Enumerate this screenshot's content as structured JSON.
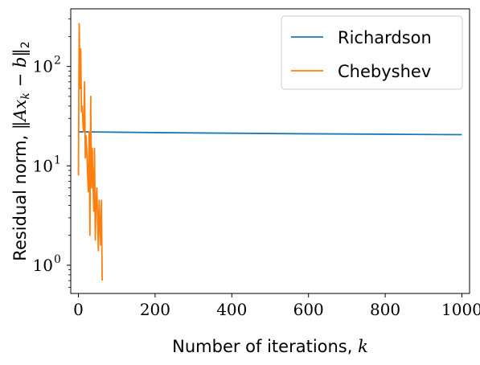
{
  "chart_data": {
    "type": "line",
    "xlabel": "Number of iterations, k",
    "ylabel": "Residual norm, ‖Ax_k − b‖_2",
    "xlim": [
      -20,
      1020
    ],
    "ylim": [
      0.52,
      380
    ],
    "yscale": "log",
    "xticks": [
      0,
      200,
      400,
      600,
      800,
      1000
    ],
    "xtick_labels": [
      "0",
      "200",
      "400",
      "600",
      "800",
      "1000"
    ],
    "yticks": [
      1,
      10,
      100
    ],
    "ytick_labels": [
      "10",
      "10",
      "10"
    ],
    "ytick_exponents": [
      "0",
      "1",
      "2"
    ],
    "grid": false,
    "legend_position": "top-right",
    "series": [
      {
        "name": "Richardson",
        "color": "#1f77b4",
        "x": [
          0,
          100,
          200,
          300,
          400,
          500,
          600,
          700,
          800,
          900,
          1000
        ],
        "y": [
          22.0,
          21.8,
          21.6,
          21.45,
          21.3,
          21.15,
          21.0,
          20.9,
          20.8,
          20.7,
          20.6
        ]
      },
      {
        "name": "Chebyshev",
        "color": "#ff7f0e",
        "x": [
          0,
          2,
          4,
          6,
          8,
          10,
          12,
          14,
          16,
          18,
          20,
          22,
          24,
          26,
          28,
          30,
          32,
          34,
          36,
          38,
          40,
          42,
          44,
          46,
          48,
          50,
          52,
          54,
          56,
          58,
          60,
          62
        ],
        "y": [
          8.0,
          270,
          60,
          150,
          35,
          40,
          25,
          22,
          70,
          12,
          20,
          14,
          8,
          5.5,
          22,
          2.0,
          50,
          6,
          15,
          7,
          3.5,
          15,
          1.8,
          4.5,
          6,
          3,
          1.4,
          4.5,
          2.5,
          1.6,
          4.5,
          0.7
        ]
      }
    ]
  }
}
